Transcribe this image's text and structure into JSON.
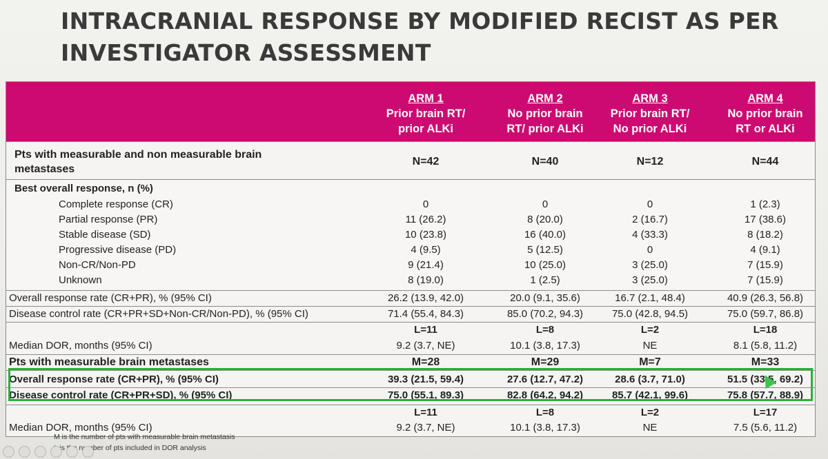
{
  "title_lines": [
    "INTRACRANIAL RESPONSE BY MODIFIED RECIST AS PER",
    "INVESTIGATOR ASSESSMENT"
  ],
  "colors": {
    "header_bg": "#cc0a72",
    "highlight_border": "#27b13a",
    "title": "#3a3a3a"
  },
  "arms": [
    {
      "name": "ARM 1",
      "line1": "Prior brain RT/",
      "line2": "prior ALKi"
    },
    {
      "name": "ARM 2",
      "line1": "No prior brain",
      "line2": "RT/ prior ALKi"
    },
    {
      "name": "ARM 3",
      "line1": "Prior brain RT/",
      "line2": "No prior ALKi"
    },
    {
      "name": "ARM 4",
      "line1": "No prior brain",
      "line2": "RT or ALKi"
    }
  ],
  "pts_all": {
    "label_line1": "Pts with measurable and non measurable brain",
    "label_line2": "metastases",
    "values": [
      "N=42",
      "N=40",
      "N=12",
      "N=44"
    ]
  },
  "bor_heading": "Best overall response, n (%)",
  "bor_rows": [
    {
      "label": "Complete response (CR)",
      "values": [
        "0",
        "0",
        "0",
        "1 (2.3)"
      ]
    },
    {
      "label": "Partial response (PR)",
      "values": [
        "11 (26.2)",
        "8 (20.0)",
        "2 (16.7)",
        "17 (38.6)"
      ]
    },
    {
      "label": "Stable disease (SD)",
      "values": [
        "10 (23.8)",
        "16 (40.0)",
        "4 (33.3)",
        "8 (18.2)"
      ]
    },
    {
      "label": "Progressive disease (PD)",
      "values": [
        "4 (9.5)",
        "5 (12.5)",
        "0",
        "4 (9.1)"
      ]
    },
    {
      "label": "Non-CR/Non-PD",
      "values": [
        "9 (21.4)",
        "10 (25.0)",
        "3 (25.0)",
        "7 (15.9)"
      ]
    },
    {
      "label": "Unknown",
      "values": [
        "8 (19.0)",
        "1 (2.5)",
        "3 (25.0)",
        "7 (15.9)"
      ]
    }
  ],
  "orr_all": {
    "label": "Overall response rate  (CR+PR), % (95% CI)",
    "values": [
      "26.2 (13.9, 42.0)",
      "20.0 (9.1, 35.6)",
      "16.7 (2.1, 48.4)",
      "40.9 (26.3, 56.8)"
    ]
  },
  "dcr_all": {
    "label": "Disease control rate  (CR+PR+SD+Non-CR/Non-PD), %  (95% CI)",
    "values": [
      "71.4 (55.4, 84.3)",
      "85.0 (70.2, 94.3)",
      "75.0 (42.8, 94.5)",
      "75.0 (59.7, 86.8)"
    ]
  },
  "dor_all": {
    "l_values": [
      "L=11",
      "L=8",
      "L=2",
      "L=18"
    ],
    "label": "Median DOR, months (95% CI)",
    "values": [
      "9.2 (3.7, NE)",
      "10.1 (3.8, 17.3)",
      "NE",
      "8.1 (5.8, 11.2)"
    ]
  },
  "pts_meas": {
    "label": "Pts with measurable brain metastases",
    "values": [
      "M=28",
      "M=29",
      "M=7",
      "M=33"
    ]
  },
  "orr_meas": {
    "label": "Overall response rate  (CR+PR), % (95% CI)",
    "values": [
      "39.3 (21.5, 59.4)",
      "27.6 (12.7, 47.2)",
      "28.6 (3.7, 71.0)",
      "51.5 (33.5, 69.2)"
    ]
  },
  "dcr_meas": {
    "label": "Disease control rate  (CR+PR+SD), % (95% CI)",
    "values": [
      "75.0 (55.1, 89.3)",
      "82.8 (64.2, 94.2)",
      "85.7 (42.1, 99.6)",
      "75.8 (57.7, 88.9)"
    ]
  },
  "dor_meas": {
    "l_values": [
      "L=11",
      "L=8",
      "L=2",
      "L=17"
    ],
    "label": "Median DOR, months (95% CI)",
    "values": [
      "9.2 (3.7, NE)",
      "10.1 (3.8, 17.3)",
      "NE",
      "7.5 (5.6, 11.2)"
    ]
  },
  "footnotes": [
    "M is the number of pts with measurable brain metastasis",
    "L is the number of pts included in DOR analysis"
  ]
}
